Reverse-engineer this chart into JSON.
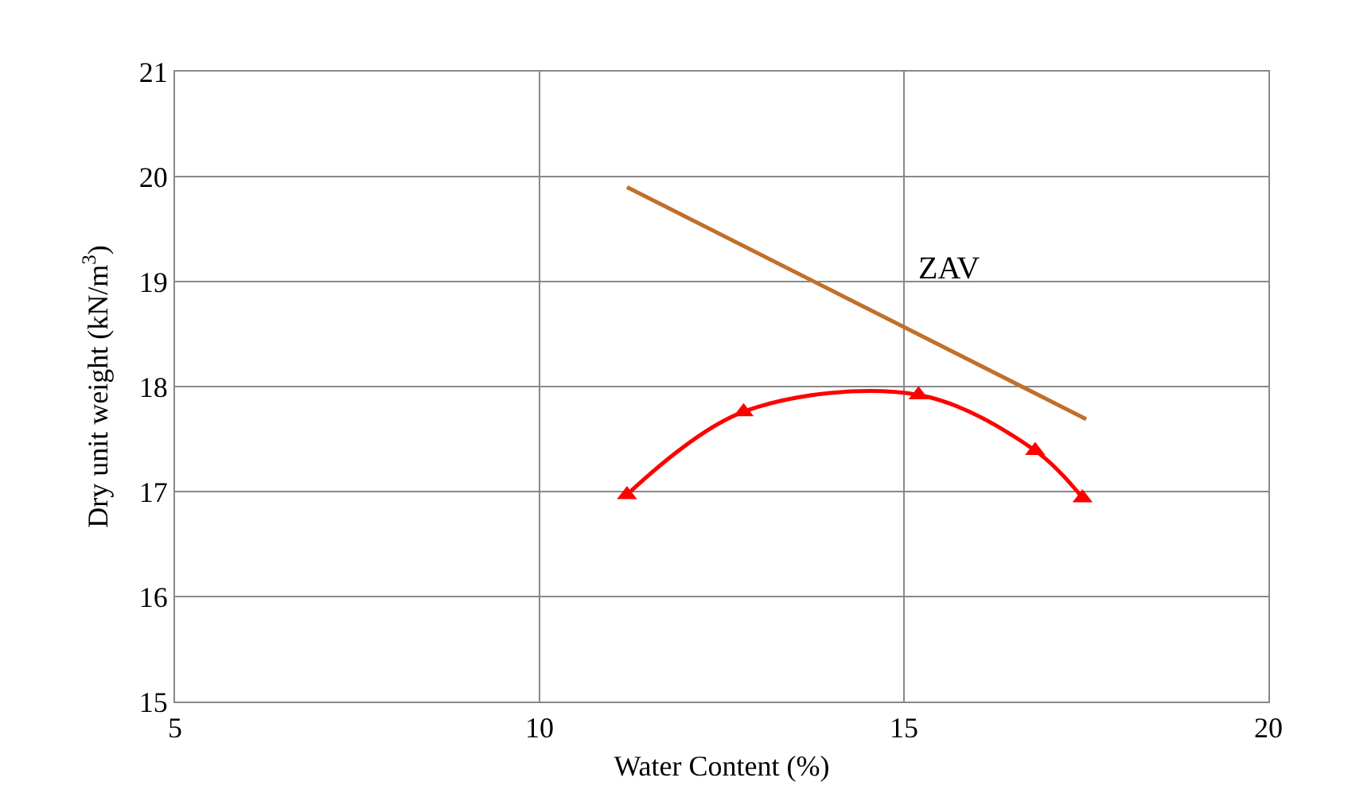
{
  "chart_data": {
    "type": "line",
    "xlabel": "Water Content (%)",
    "ylabel": "Dry unit weight (kN/m$^{3}$)",
    "xlim": [
      5,
      20
    ],
    "xticks": [
      5,
      10,
      15,
      20
    ],
    "ylim": [
      15,
      21
    ],
    "yticks": [
      15,
      16,
      17,
      18,
      19,
      20,
      21
    ],
    "grid": true,
    "legend": false,
    "series": [
      {
        "color": "#ff0000",
        "marker": "triangle",
        "x": [
          11.2,
          12.8,
          15.2,
          16.8,
          17.45
        ],
        "values": [
          16.97,
          17.76,
          17.92,
          17.39,
          16.94
        ]
      },
      {
        "color": "#c0702a",
        "marker": "none",
        "x": [
          11.2,
          17.5
        ],
        "values": [
          19.9,
          17.69
        ]
      }
    ],
    "annotations": [
      "ZAV"
    ]
  }
}
